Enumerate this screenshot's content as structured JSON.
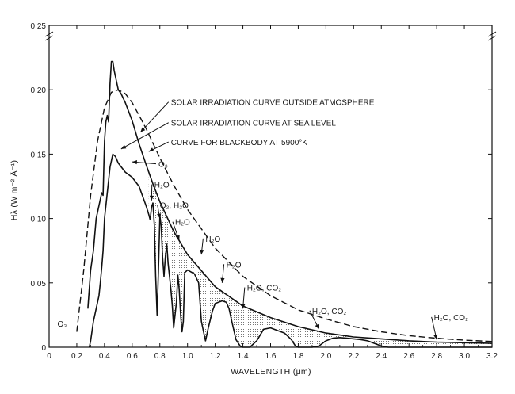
{
  "chart_data": {
    "type": "line",
    "title": "",
    "xlabel": "WAVELENGTH (μm)",
    "ylabel": "Hλ (W m⁻² Å⁻¹)",
    "xlim": [
      0,
      3.2
    ],
    "ylim": [
      0,
      0.25
    ],
    "x_ticks": [
      0,
      0.2,
      0.4,
      0.6,
      0.8,
      1.0,
      1.2,
      1.4,
      1.6,
      1.8,
      2.0,
      2.2,
      2.4,
      2.6,
      2.8,
      3.0,
      3.2
    ],
    "x_tick_labels": [
      "0",
      "0.2",
      "0.4",
      "0.6",
      "0.8",
      "1.0",
      "1.2",
      "1.4",
      "1.6",
      "1.8",
      "2.0",
      "2.2",
      "2.4",
      "2.6",
      "2.8",
      "3.0",
      "3.2"
    ],
    "y_ticks": [
      0,
      0.05,
      0.1,
      0.15,
      0.2,
      0.25
    ],
    "y_tick_labels": [
      "0",
      "0.05",
      "0.10",
      "0.15",
      "0.20",
      "0.25"
    ],
    "grid": false,
    "legend": "none",
    "series": [
      {
        "name": "SOLAR IRRADIATION CURVE OUTSIDE ATMOSPHERE",
        "style": "solid",
        "x": [
          0.28,
          0.3,
          0.32,
          0.34,
          0.36,
          0.38,
          0.39,
          0.4,
          0.41,
          0.42,
          0.43,
          0.44,
          0.45,
          0.46,
          0.47,
          0.48,
          0.5,
          0.52,
          0.55,
          0.6,
          0.65,
          0.7,
          0.75,
          0.8,
          0.9,
          1.0,
          1.2,
          1.4,
          1.6,
          1.8,
          2.0,
          2.2,
          2.4,
          2.6,
          2.8,
          3.0,
          3.2
        ],
        "y": [
          0.03,
          0.06,
          0.075,
          0.1,
          0.11,
          0.12,
          0.118,
          0.16,
          0.175,
          0.18,
          0.175,
          0.205,
          0.222,
          0.222,
          0.215,
          0.21,
          0.2,
          0.197,
          0.19,
          0.176,
          0.158,
          0.142,
          0.127,
          0.113,
          0.09,
          0.072,
          0.047,
          0.032,
          0.023,
          0.016,
          0.011,
          0.008,
          0.0065,
          0.005,
          0.004,
          0.0035,
          0.003
        ]
      },
      {
        "name": "SOLAR IRRADIATION CURVE AT SEA LEVEL",
        "style": "solid",
        "x": [
          0.29,
          0.3,
          0.32,
          0.34,
          0.36,
          0.37,
          0.38,
          0.39,
          0.4,
          0.42,
          0.44,
          0.46,
          0.48,
          0.5,
          0.55,
          0.6,
          0.65,
          0.7,
          0.72,
          0.73,
          0.74,
          0.75,
          0.76,
          0.77,
          0.78,
          0.79,
          0.8,
          0.81,
          0.82,
          0.83,
          0.84,
          0.85,
          0.86,
          0.88,
          0.89,
          0.9,
          0.92,
          0.93,
          0.94,
          0.95,
          0.96,
          0.97,
          0.98,
          1.0,
          1.05,
          1.08,
          1.1,
          1.12,
          1.13,
          1.15,
          1.18,
          1.2,
          1.25,
          1.28,
          1.3,
          1.32,
          1.35,
          1.38,
          1.4,
          1.42,
          1.45,
          1.5,
          1.55,
          1.6,
          1.65,
          1.7,
          1.75,
          1.78,
          1.8,
          1.85,
          1.9,
          1.95,
          2.0,
          2.05,
          2.1,
          2.15,
          2.2,
          2.25,
          2.3,
          2.35,
          2.4,
          2.45,
          2.5,
          2.55,
          2.6,
          2.7,
          2.8,
          2.9,
          3.0,
          3.1,
          3.2
        ],
        "y": [
          0.0,
          0.005,
          0.02,
          0.03,
          0.04,
          0.05,
          0.062,
          0.075,
          0.1,
          0.12,
          0.14,
          0.15,
          0.148,
          0.143,
          0.136,
          0.132,
          0.125,
          0.11,
          0.103,
          0.099,
          0.109,
          0.112,
          0.095,
          0.055,
          0.025,
          0.06,
          0.102,
          0.094,
          0.07,
          0.055,
          0.07,
          0.08,
          0.065,
          0.045,
          0.032,
          0.015,
          0.035,
          0.056,
          0.045,
          0.025,
          0.012,
          0.02,
          0.058,
          0.06,
          0.057,
          0.05,
          0.02,
          0.01,
          0.005,
          0.015,
          0.028,
          0.034,
          0.036,
          0.035,
          0.03,
          0.02,
          0.006,
          0.001,
          0.0,
          0.0,
          0.0,
          0.005,
          0.014,
          0.015,
          0.013,
          0.011,
          0.006,
          0.001,
          0.0,
          0.0,
          0.0,
          0.001,
          0.005,
          0.007,
          0.0075,
          0.007,
          0.0065,
          0.006,
          0.005,
          0.003,
          0.001,
          0.0,
          0.0,
          0.0,
          0.0,
          0.0,
          0.0,
          0.0,
          0.0,
          0.0,
          0.0
        ]
      },
      {
        "name": "CURVE FOR BLACKBODY AT 5900°K",
        "style": "dashed",
        "x": [
          0.2,
          0.25,
          0.3,
          0.35,
          0.4,
          0.45,
          0.5,
          0.55,
          0.6,
          0.7,
          0.8,
          0.9,
          1.0,
          1.2,
          1.4,
          1.6,
          1.8,
          2.0,
          2.2,
          2.4,
          2.6,
          2.8,
          3.0,
          3.2
        ],
        "y": [
          0.012,
          0.06,
          0.118,
          0.16,
          0.186,
          0.198,
          0.2,
          0.197,
          0.19,
          0.17,
          0.147,
          0.126,
          0.107,
          0.077,
          0.055,
          0.04,
          0.029,
          0.022,
          0.016,
          0.012,
          0.009,
          0.007,
          0.0055,
          0.0045
        ]
      }
    ],
    "annotations": [
      {
        "text": "SOLAR IRRADIATION CURVE OUTSIDE ATMOSPHERE",
        "x": 0.88,
        "y": 0.188,
        "arrow_to": [
          0.66,
          0.167
        ]
      },
      {
        "text": "SOLAR IRRADIATION CURVE AT SEA LEVEL",
        "x": 0.88,
        "y": 0.172,
        "arrow_to": [
          0.52,
          0.154
        ]
      },
      {
        "text": "CURVE FOR BLACKBODY AT 5900°K",
        "x": 0.88,
        "y": 0.157,
        "arrow_to": [
          0.72,
          0.152
        ]
      },
      {
        "text": "O₃",
        "x": 0.79,
        "y": 0.14,
        "arrow_to": [
          0.6,
          0.144
        ]
      },
      {
        "text": "H₂O",
        "x": 0.76,
        "y": 0.124,
        "arrow_to": [
          0.74,
          0.114
        ]
      },
      {
        "text": "O₂, H₂O",
        "x": 0.8,
        "y": 0.108,
        "arrow_to": [
          0.8,
          0.1
        ]
      },
      {
        "text": "H₂O",
        "x": 0.91,
        "y": 0.095,
        "arrow_to": [
          0.94,
          0.083
        ]
      },
      {
        "text": "H₂O",
        "x": 1.13,
        "y": 0.082,
        "arrow_to": [
          1.1,
          0.072
        ]
      },
      {
        "text": "H₂O",
        "x": 1.28,
        "y": 0.062,
        "arrow_to": [
          1.25,
          0.05
        ]
      },
      {
        "text": "H₂O, CO₂",
        "x": 1.43,
        "y": 0.044,
        "arrow_to": [
          1.4,
          0.03
        ]
      },
      {
        "text": "H₂O, CO₂",
        "x": 1.9,
        "y": 0.026,
        "arrow_to": [
          1.95,
          0.014
        ]
      },
      {
        "text": "H₂O, CO₂",
        "x": 2.78,
        "y": 0.021,
        "arrow_to": [
          2.8,
          0.006
        ]
      },
      {
        "text": "O₃",
        "x": 0.06,
        "y": 0.016,
        "arrow_to": null
      }
    ]
  }
}
